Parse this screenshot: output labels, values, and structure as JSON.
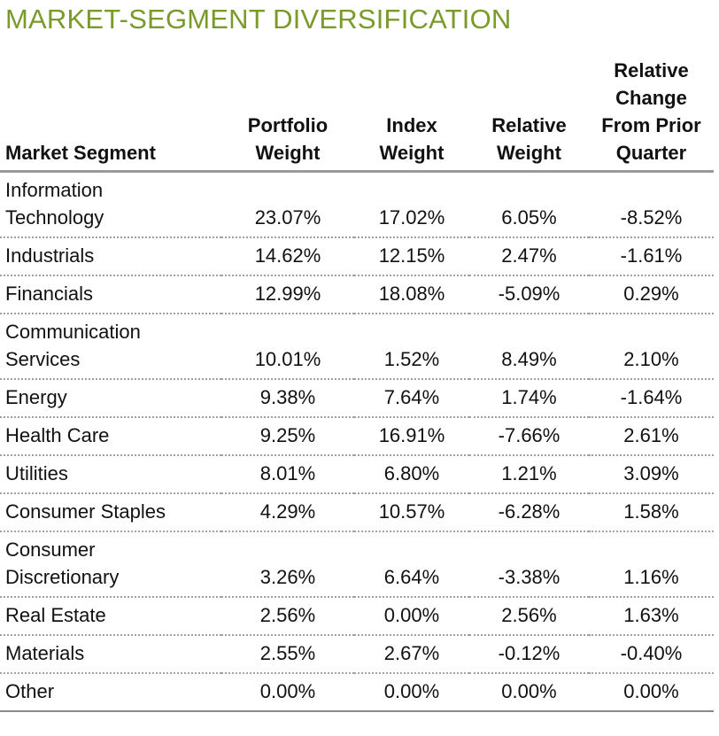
{
  "title": "MARKET-SEGMENT DIVERSIFICATION",
  "headers": {
    "segment": "Market Segment",
    "portfolio_weight": [
      "Portfolio",
      "Weight"
    ],
    "index_weight": [
      "Index",
      "Weight"
    ],
    "relative_weight": [
      "Relative",
      "Weight"
    ],
    "relative_change": [
      "Relative",
      "Change",
      "From Prior",
      "Quarter"
    ]
  },
  "rows": [
    {
      "segment": [
        "Information",
        "Technology"
      ],
      "portfolio": "23.07%",
      "index": "17.02%",
      "relative": "6.05%",
      "change": "-8.52%"
    },
    {
      "segment": [
        "Industrials"
      ],
      "portfolio": "14.62%",
      "index": "12.15%",
      "relative": "2.47%",
      "change": "-1.61%"
    },
    {
      "segment": [
        "Financials"
      ],
      "portfolio": "12.99%",
      "index": "18.08%",
      "relative": "-5.09%",
      "change": "0.29%"
    },
    {
      "segment": [
        "Communication",
        "Services"
      ],
      "portfolio": "10.01%",
      "index": "1.52%",
      "relative": "8.49%",
      "change": "2.10%"
    },
    {
      "segment": [
        "Energy"
      ],
      "portfolio": "9.38%",
      "index": "7.64%",
      "relative": "1.74%",
      "change": "-1.64%"
    },
    {
      "segment": [
        "Health Care"
      ],
      "portfolio": "9.25%",
      "index": "16.91%",
      "relative": "-7.66%",
      "change": "2.61%"
    },
    {
      "segment": [
        "Utilities"
      ],
      "portfolio": "8.01%",
      "index": "6.80%",
      "relative": "1.21%",
      "change": "3.09%"
    },
    {
      "segment": [
        "Consumer Staples"
      ],
      "portfolio": "4.29%",
      "index": "10.57%",
      "relative": "-6.28%",
      "change": "1.58%"
    },
    {
      "segment": [
        "Consumer",
        "Discretionary"
      ],
      "portfolio": "3.26%",
      "index": "6.64%",
      "relative": "-3.38%",
      "change": "1.16%"
    },
    {
      "segment": [
        "Real Estate"
      ],
      "portfolio": "2.56%",
      "index": "0.00%",
      "relative": "2.56%",
      "change": "1.63%"
    },
    {
      "segment": [
        "Materials"
      ],
      "portfolio": "2.55%",
      "index": "2.67%",
      "relative": "-0.12%",
      "change": "-0.40%"
    },
    {
      "segment": [
        "Other"
      ],
      "portfolio": "0.00%",
      "index": "0.00%",
      "relative": "0.00%",
      "change": "0.00%"
    }
  ],
  "colors": {
    "title": "#7a9a2a",
    "header_rule": "#9a9a9a",
    "row_rule": "#a0a0a0"
  }
}
